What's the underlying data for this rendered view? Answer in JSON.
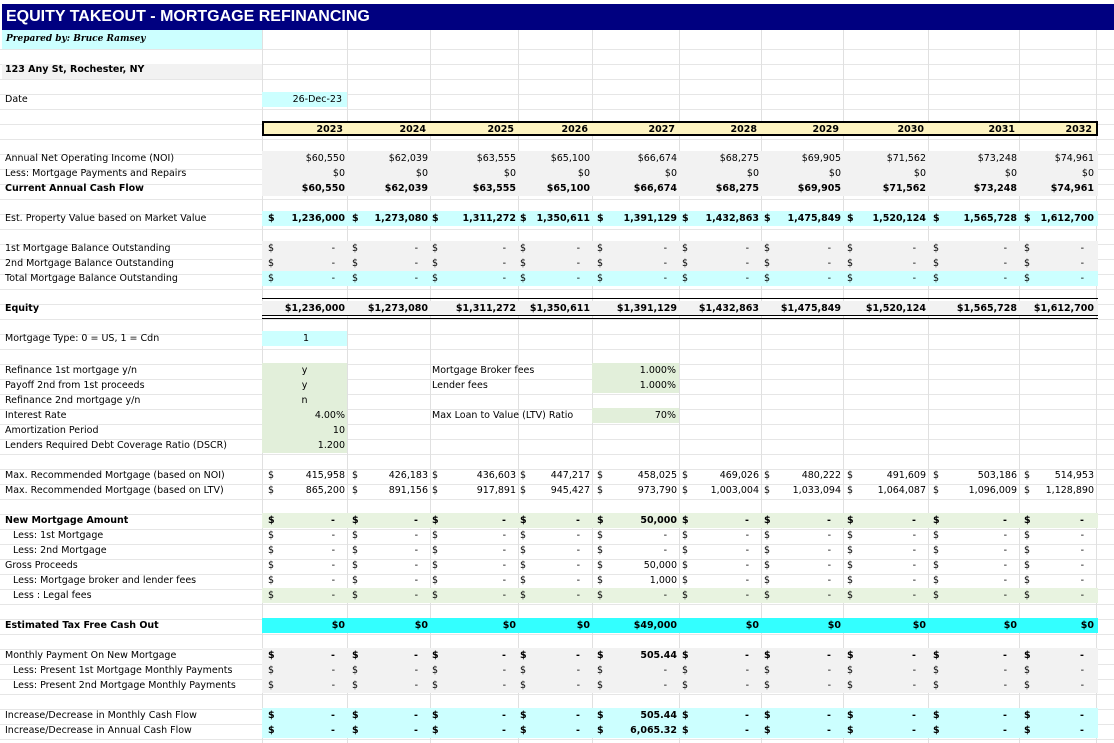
{
  "title": "EQUITY TAKEOUT - MORTGAGE REFINANCING",
  "prepared_by": "Prepared by: Bruce Ramsey",
  "address": "123 Any St, Rochester, NY",
  "date_label": "Date",
  "date_value": "26-Dec-23",
  "years": [
    "2023",
    "2024",
    "2025",
    "2026",
    "2027",
    "2028",
    "2029",
    "2030",
    "2031",
    "2032"
  ],
  "noi": {
    "label": "Annual Net Operating Income (NOI)",
    "values": [
      "$60,550",
      "$62,039",
      "$63,555",
      "$65,100",
      "$66,674",
      "$68,275",
      "$69,905",
      "$71,562",
      "$73,248",
      "$74,961"
    ]
  },
  "payments": {
    "label": "Less:  Mortgage Payments and Repairs",
    "values": [
      "$0",
      "$0",
      "$0",
      "$0",
      "$0",
      "$0",
      "$0",
      "$0",
      "$0",
      "$0"
    ]
  },
  "cashflow": {
    "label": "Current Annual Cash Flow",
    "values": [
      "$60,550",
      "$62,039",
      "$63,555",
      "$65,100",
      "$66,674",
      "$68,275",
      "$69,905",
      "$71,562",
      "$73,248",
      "$74,961"
    ]
  },
  "property": {
    "label": "Est. Property Value based on Market Value",
    "values": [
      "1,236,000",
      "1,273,080",
      "1,311,272",
      "1,350,611",
      "1,391,129",
      "1,432,863",
      "1,475,849",
      "1,520,124",
      "1,565,728",
      "1,612,700"
    ]
  },
  "m1": {
    "label": "1st Mortgage Balance Outstanding",
    "values": [
      "-",
      "-",
      "-",
      "-",
      "-",
      "-",
      "-",
      "-",
      "-",
      "-"
    ]
  },
  "m2": {
    "label": "2nd Mortgage Balance Outstanding",
    "values": [
      "-",
      "-",
      "-",
      "-",
      "-",
      "-",
      "-",
      "-",
      "-",
      "-"
    ]
  },
  "mtot": {
    "label": "Total Mortgage Balance Outstanding",
    "values": [
      "-",
      "-",
      "-",
      "-",
      "-",
      "-",
      "-",
      "-",
      "-",
      "-"
    ]
  },
  "equity": {
    "label": "Equity",
    "values": [
      "$1,236,000",
      "$1,273,080",
      "$1,311,272",
      "$1,350,611",
      "$1,391,129",
      "$1,432,863",
      "$1,475,849",
      "$1,520,124",
      "$1,565,728",
      "$1,612,700"
    ]
  },
  "mtype": {
    "label": "Mortgage Type: 0 = US,  1 = Cdn",
    "value": "1"
  },
  "inputs": [
    {
      "label": "Refinance 1st mortgage y/n",
      "value": "y",
      "align": "center"
    },
    {
      "label": "Payoff 2nd from 1st proceeds",
      "value": "y",
      "align": "center"
    },
    {
      "label": "Refinance 2nd mortgage y/n",
      "value": "n",
      "align": "center"
    },
    {
      "label": "Interest Rate",
      "value": "4.00%",
      "align": "right"
    },
    {
      "label": "Amortization Period",
      "value": "10",
      "align": "right"
    },
    {
      "label": "Lenders Required Debt Coverage Ratio (DSCR)",
      "value": "1.200",
      "align": "right"
    }
  ],
  "fees": [
    {
      "label": "Mortgage Broker fees",
      "value": "1.000%"
    },
    {
      "label": "Lender fees",
      "value": "1.000%"
    }
  ],
  "ltv": {
    "label": "Max Loan to Value (LTV) Ratio",
    "value": "70%"
  },
  "maxnoi": {
    "label": "Max. Recommended Mortgage (based on NOI)",
    "values": [
      "415,958",
      "426,183",
      "436,603",
      "447,217",
      "458,025",
      "469,026",
      "480,222",
      "491,609",
      "503,186",
      "514,953"
    ]
  },
  "maxltv": {
    "label": "Max. Recommended Mortgage (based on LTV)",
    "values": [
      "865,200",
      "891,156",
      "917,891",
      "945,427",
      "973,790",
      "1,003,004",
      "1,033,094",
      "1,064,087",
      "1,096,009",
      "1,128,890"
    ]
  },
  "newmort": {
    "label": "New Mortgage Amount",
    "values": [
      "-",
      "-",
      "-",
      "-",
      "50,000",
      "-",
      "-",
      "-",
      "-",
      "-"
    ]
  },
  "less1": {
    "label": "Less: 1st Mortgage",
    "values": [
      "-",
      "-",
      "-",
      "-",
      "-",
      "-",
      "-",
      "-",
      "-",
      "-"
    ]
  },
  "less2": {
    "label": "Less: 2nd Mortgage",
    "values": [
      "-",
      "-",
      "-",
      "-",
      "-",
      "-",
      "-",
      "-",
      "-",
      "-"
    ]
  },
  "gross": {
    "label": "Gross Proceeds",
    "values": [
      "-",
      "-",
      "-",
      "-",
      "50,000",
      "-",
      "-",
      "-",
      "-",
      "-"
    ]
  },
  "brokerfees": {
    "label": "Less: Mortgage broker and lender fees",
    "values": [
      "-",
      "-",
      "-",
      "-",
      "1,000",
      "-",
      "-",
      "-",
      "-",
      "-"
    ]
  },
  "legal": {
    "label": "Less : Legal fees",
    "values": [
      "-",
      "-",
      "-",
      "-",
      "-",
      "-",
      "-",
      "-",
      "-",
      "-"
    ]
  },
  "taxfree": {
    "label": "Estimated Tax Free Cash Out",
    "values": [
      "$0",
      "$0",
      "$0",
      "$0",
      "$49,000",
      "$0",
      "$0",
      "$0",
      "$0",
      "$0"
    ]
  },
  "monthly": {
    "label": "Monthly Payment On New Mortgage",
    "values": [
      "-",
      "-",
      "-",
      "-",
      "505.44",
      "-",
      "-",
      "-",
      "-",
      "-"
    ]
  },
  "pm1": {
    "label": "Less: Present 1st Mortgage Monthly Payments",
    "values": [
      "-",
      "-",
      "-",
      "-",
      "-",
      "-",
      "-",
      "-",
      "-",
      "-"
    ]
  },
  "pm2": {
    "label": "Less: Present 2nd Mortgage Monthly Payments",
    "values": [
      "-",
      "-",
      "-",
      "-",
      "-",
      "-",
      "-",
      "-",
      "-",
      "-"
    ]
  },
  "incm": {
    "label": "Increase/Decrease in Monthly Cash Flow",
    "values": [
      "-",
      "-",
      "-",
      "-",
      "505.44",
      "-",
      "-",
      "-",
      "-",
      "-"
    ]
  },
  "inca": {
    "label": "Increase/Decrease in Annual Cash Flow",
    "values": [
      "-",
      "-",
      "-",
      "-",
      "6,065.32",
      "-",
      "-",
      "-",
      "-",
      "-"
    ]
  },
  "currency": "$"
}
